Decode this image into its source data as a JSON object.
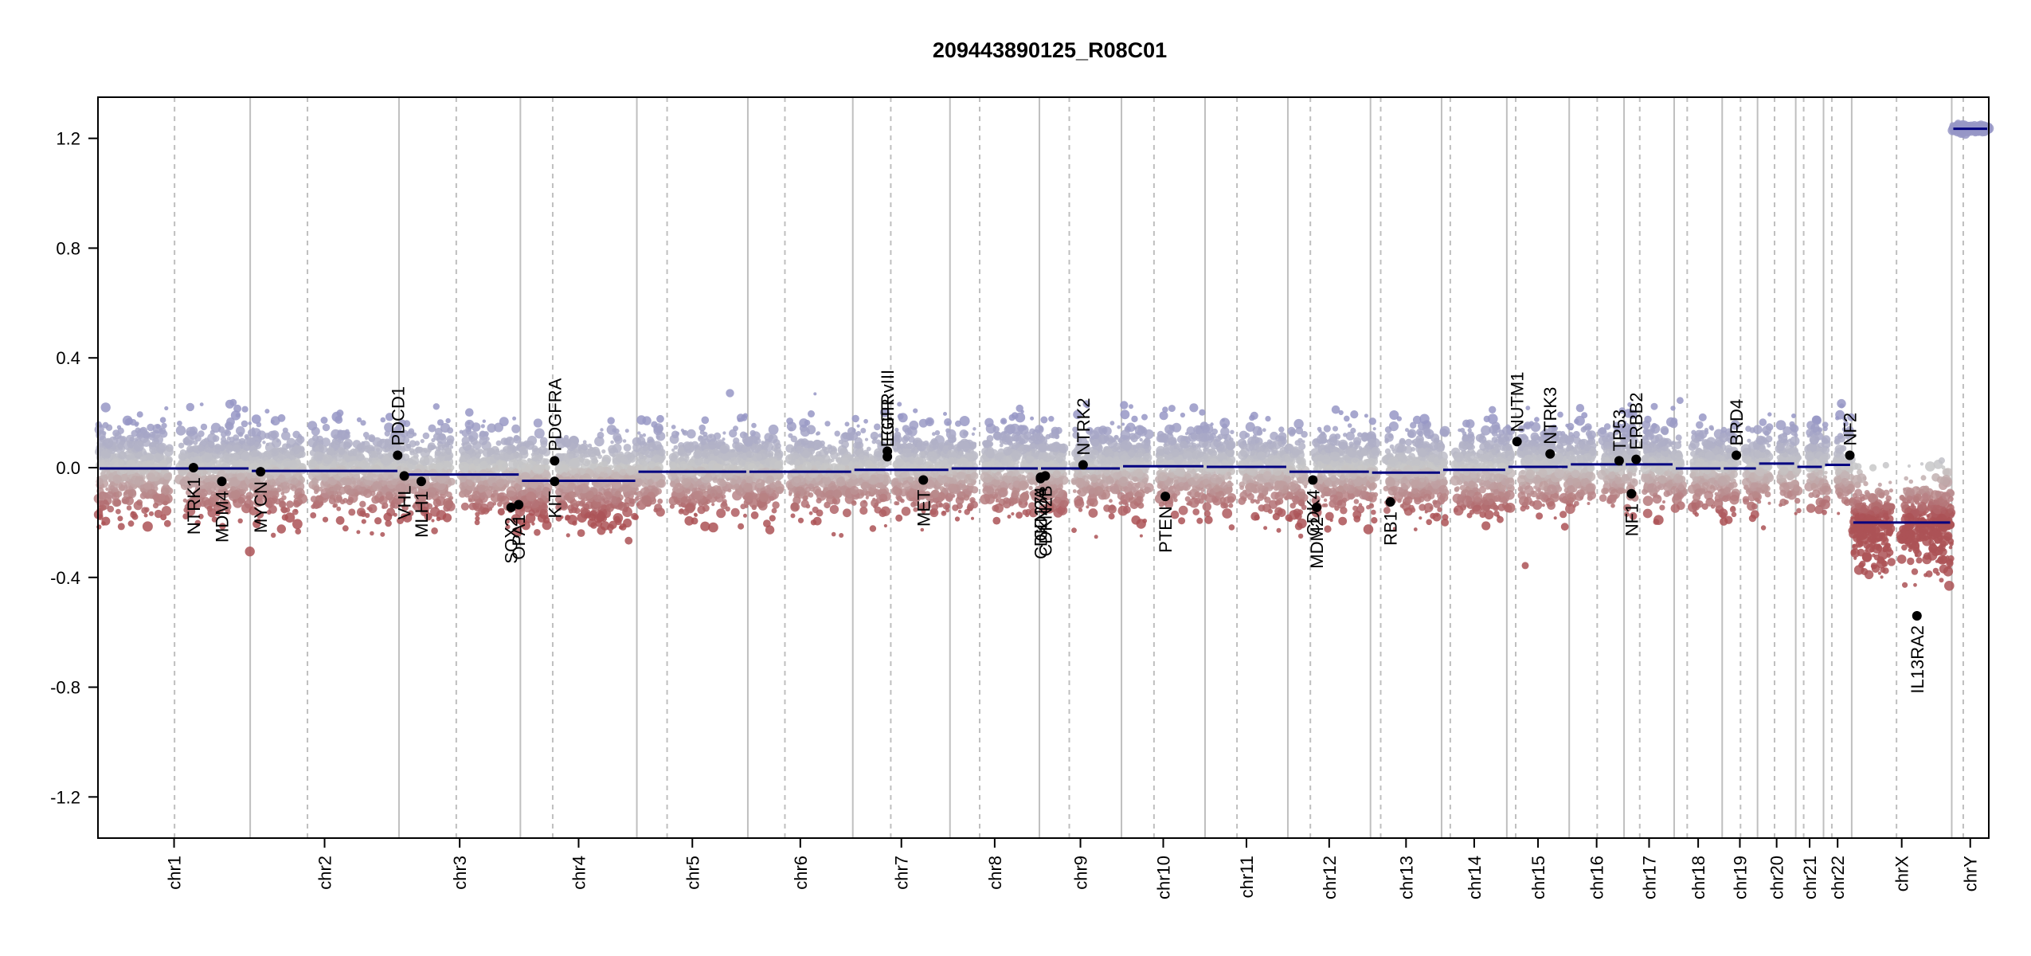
{
  "chart_data": {
    "type": "scatter",
    "title": "209443890125_R08C01",
    "xlabel": "",
    "ylabel": "",
    "ylim": [
      -1.35,
      1.35
    ],
    "y_ticks": [
      1.2,
      0.8,
      0.4,
      0.0,
      -0.4,
      -0.8,
      -1.2
    ],
    "y_tick_labels": [
      "1.2",
      "0.8",
      "0.4",
      "0.0",
      "-0.4",
      "-0.8",
      "-1.2"
    ],
    "grid": false,
    "colors": {
      "segment": "#000080",
      "gene_point": "#000000",
      "chr_boundary": "#bfbfbf",
      "centromere": "#bfbfbf",
      "gain_points": "#9c9cc6",
      "neutral_points": "#c8c8c8",
      "loss_points": "#b0585a"
    },
    "chromosomes": [
      {
        "name": "chr1",
        "label": "chr1",
        "start": 0.0,
        "end": 0.0805,
        "centromere": 0.0405,
        "segment": -0.003,
        "noise": 0.11
      },
      {
        "name": "chr2",
        "label": "chr2",
        "start": 0.0805,
        "end": 0.1592,
        "centromere": 0.1108,
        "segment": -0.012,
        "noise": 0.1
      },
      {
        "name": "chr3",
        "label": "chr3",
        "start": 0.1592,
        "end": 0.2234,
        "centromere": 0.1895,
        "segment": -0.025,
        "noise": 0.1
      },
      {
        "name": "chr4",
        "label": "chr4",
        "start": 0.2234,
        "end": 0.285,
        "centromere": 0.2405,
        "segment": -0.048,
        "noise": 0.1
      },
      {
        "name": "chr5",
        "label": "chr5",
        "start": 0.285,
        "end": 0.3437,
        "centromere": 0.301,
        "segment": -0.015,
        "noise": 0.1
      },
      {
        "name": "chr6",
        "label": "chr6",
        "start": 0.3437,
        "end": 0.3992,
        "centromere": 0.3633,
        "segment": -0.015,
        "noise": 0.1
      },
      {
        "name": "chr7",
        "label": "chr7",
        "start": 0.3992,
        "end": 0.4506,
        "centromere": 0.4193,
        "segment": -0.008,
        "noise": 0.1
      },
      {
        "name": "chr8",
        "label": "chr8",
        "start": 0.4506,
        "end": 0.4979,
        "centromere": 0.4663,
        "segment": -0.003,
        "noise": 0.1
      },
      {
        "name": "chr9",
        "label": "chr9",
        "start": 0.4979,
        "end": 0.5413,
        "centromere": 0.5137,
        "segment": -0.003,
        "noise": 0.1
      },
      {
        "name": "chr10",
        "label": "chr10",
        "start": 0.5413,
        "end": 0.5855,
        "centromere": 0.5585,
        "segment": 0.005,
        "noise": 0.1
      },
      {
        "name": "chr11",
        "label": "chr11",
        "start": 0.5855,
        "end": 0.6293,
        "centromere": 0.6024,
        "segment": 0.003,
        "noise": 0.1
      },
      {
        "name": "chr12",
        "label": "chr12",
        "start": 0.6293,
        "end": 0.673,
        "centromere": 0.6412,
        "segment": -0.015,
        "noise": 0.1
      },
      {
        "name": "chr13",
        "label": "chr13",
        "start": 0.673,
        "end": 0.7106,
        "centromere": 0.6784,
        "segment": -0.018,
        "noise": 0.1
      },
      {
        "name": "chr14",
        "label": "chr14",
        "start": 0.7106,
        "end": 0.7451,
        "centromere": 0.7152,
        "segment": -0.008,
        "noise": 0.1
      },
      {
        "name": "chr15",
        "label": "chr15",
        "start": 0.7451,
        "end": 0.7781,
        "centromere": 0.7498,
        "segment": 0.003,
        "noise": 0.1
      },
      {
        "name": "chr16",
        "label": "chr16",
        "start": 0.7781,
        "end": 0.8071,
        "centromere": 0.7929,
        "segment": 0.012,
        "noise": 0.1
      },
      {
        "name": "chr17",
        "label": "chr17",
        "start": 0.8071,
        "end": 0.8336,
        "centromere": 0.8154,
        "segment": 0.012,
        "noise": 0.1
      },
      {
        "name": "chr18",
        "label": "chr18",
        "start": 0.8336,
        "end": 0.859,
        "centromere": 0.8405,
        "segment": -0.003,
        "noise": 0.1
      },
      {
        "name": "chr19",
        "label": "chr19",
        "start": 0.859,
        "end": 0.8777,
        "centromere": 0.8687,
        "segment": -0.003,
        "noise": 0.1
      },
      {
        "name": "chr20",
        "label": "chr20",
        "start": 0.8777,
        "end": 0.8979,
        "centromere": 0.8867,
        "segment": 0.015,
        "noise": 0.1
      },
      {
        "name": "chr21",
        "label": "chr21",
        "start": 0.8979,
        "end": 0.9126,
        "centromere": 0.9021,
        "segment": 0.003,
        "noise": 0.1
      },
      {
        "name": "chr22",
        "label": "chr22",
        "start": 0.9126,
        "end": 0.9275,
        "centromere": 0.917,
        "segment": 0.01,
        "noise": 0.1
      },
      {
        "name": "chrX",
        "label": "chrX",
        "start": 0.9275,
        "end": 0.9804,
        "centromere": 0.9512,
        "segment": -0.2,
        "noise": 0.11
      },
      {
        "name": "chrY",
        "label": "chrY",
        "start": 0.9804,
        "end": 1.0,
        "centromere": 0.9865,
        "segment": 1.235,
        "noise": 0.01
      }
    ],
    "genes": [
      {
        "name": "NTRK1",
        "x": 0.0505,
        "y": 0.0,
        "label_side": "below"
      },
      {
        "name": "MDM4",
        "x": 0.0655,
        "y": -0.05,
        "label_side": "below"
      },
      {
        "name": "MYCN",
        "x": 0.086,
        "y": -0.015,
        "label_side": "below"
      },
      {
        "name": "PDCD1",
        "x": 0.1585,
        "y": 0.045,
        "label_side": "above"
      },
      {
        "name": "VHL",
        "x": 0.162,
        "y": -0.03,
        "label_side": "below"
      },
      {
        "name": "MLH1",
        "x": 0.171,
        "y": -0.05,
        "label_side": "below"
      },
      {
        "name": "SOX2",
        "x": 0.2185,
        "y": -0.145,
        "label_side": "below"
      },
      {
        "name": "OPA1",
        "x": 0.2225,
        "y": -0.135,
        "label_side": "below"
      },
      {
        "name": "KIT",
        "x": 0.2415,
        "y": -0.05,
        "label_side": "below"
      },
      {
        "name": "PDGFRA",
        "x": 0.2415,
        "y": 0.025,
        "label_side": "above"
      },
      {
        "name": "EGFR",
        "x": 0.4175,
        "y": 0.04,
        "label_side": "above"
      },
      {
        "name": "EGFRvIII",
        "x": 0.4175,
        "y": 0.06,
        "label_side": "above"
      },
      {
        "name": "MET",
        "x": 0.4365,
        "y": -0.045,
        "label_side": "below"
      },
      {
        "name": "CDKN2A",
        "x": 0.4985,
        "y": -0.04,
        "label_side": "below"
      },
      {
        "name": "CDKN2B",
        "x": 0.501,
        "y": -0.03,
        "label_side": "below"
      },
      {
        "name": "CD274",
        "x": 0.4985,
        "y": -0.035,
        "label_side": "below"
      },
      {
        "name": "NTRK2",
        "x": 0.521,
        "y": 0.01,
        "label_side": "above"
      },
      {
        "name": "PTEN",
        "x": 0.5645,
        "y": -0.105,
        "label_side": "below"
      },
      {
        "name": "CDK4",
        "x": 0.6425,
        "y": -0.045,
        "label_side": "below"
      },
      {
        "name": "MDM2",
        "x": 0.6445,
        "y": -0.145,
        "label_side": "below"
      },
      {
        "name": "RB1",
        "x": 0.6835,
        "y": -0.125,
        "label_side": "below"
      },
      {
        "name": "NUTM1",
        "x": 0.7505,
        "y": 0.095,
        "label_side": "above"
      },
      {
        "name": "NTRK3",
        "x": 0.768,
        "y": 0.05,
        "label_side": "above"
      },
      {
        "name": "TP53",
        "x": 0.8045,
        "y": 0.025,
        "label_side": "above"
      },
      {
        "name": "ERBB2",
        "x": 0.8135,
        "y": 0.03,
        "label_side": "above"
      },
      {
        "name": "NF1",
        "x": 0.811,
        "y": -0.095,
        "label_side": "below"
      },
      {
        "name": "BRD4",
        "x": 0.8665,
        "y": 0.045,
        "label_side": "above"
      },
      {
        "name": "NF2",
        "x": 0.9265,
        "y": 0.045,
        "label_side": "above"
      },
      {
        "name": "IL13RA2",
        "x": 0.962,
        "y": -0.54,
        "label_side": "below"
      }
    ]
  }
}
